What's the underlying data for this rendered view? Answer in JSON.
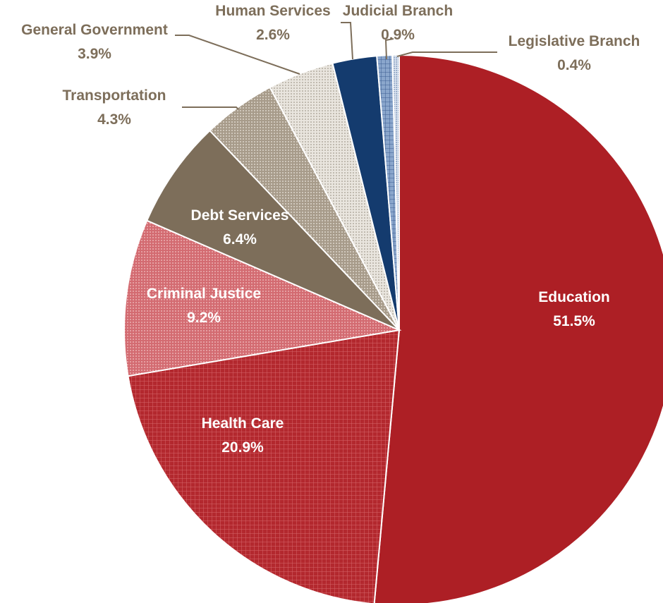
{
  "chart_data": {
    "type": "pie",
    "title": "",
    "slices": [
      {
        "label": "Education",
        "value": 51.5,
        "value_label": "51.5%",
        "color": "#ad1f25",
        "pattern": "solid",
        "label_position": "inside"
      },
      {
        "label": "Health Care",
        "value": 20.9,
        "value_label": "20.9%",
        "color": "#b3282e",
        "pattern": "grid",
        "label_position": "inside"
      },
      {
        "label": "Criminal Justice",
        "value": 9.2,
        "value_label": "9.2%",
        "color": "#d9777c",
        "pattern": "dots",
        "label_position": "inside"
      },
      {
        "label": "Debt Services",
        "value": 6.4,
        "value_label": "6.4%",
        "color": "#7d6e5a",
        "pattern": "solid",
        "label_position": "inside"
      },
      {
        "label": "Transportation",
        "value": 4.3,
        "value_label": "4.3%",
        "color": "#b5aa9b",
        "pattern": "dots",
        "label_position": "outside"
      },
      {
        "label": "General Government",
        "value": 3.9,
        "value_label": "3.9%",
        "color": "#d2ccc2",
        "pattern": "dots",
        "label_position": "outside"
      },
      {
        "label": "Human Services",
        "value": 2.6,
        "value_label": "2.6%",
        "color": "#143b6e",
        "pattern": "solid",
        "label_position": "outside"
      },
      {
        "label": "Judicial Branch",
        "value": 0.9,
        "value_label": "0.9%",
        "color": "#7f9cc4",
        "pattern": "grid",
        "label_position": "outside"
      },
      {
        "label": "Legislative Branch",
        "value": 0.4,
        "value_label": "0.4%",
        "color": "#5e7fb1",
        "pattern": "dots",
        "label_position": "outside"
      }
    ],
    "label_color_inside": "#ffffff",
    "label_color_outside": "#7d6e5a",
    "legend": "none"
  }
}
